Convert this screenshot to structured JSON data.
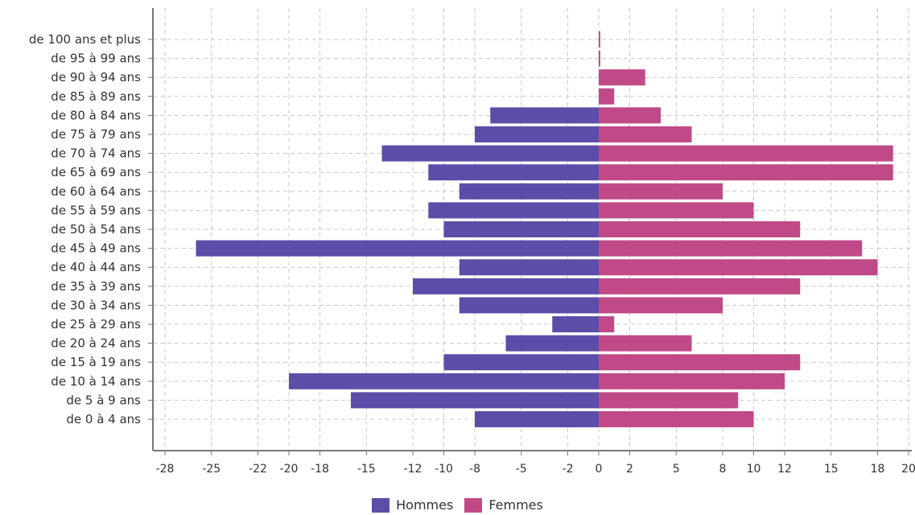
{
  "chart_data": {
    "type": "bar",
    "orientation": "horizontal",
    "categories": [
      "de 0 à 4 ans",
      "de 5 à 9 ans",
      "de 10 à 14 ans",
      "de 15 à 19 ans",
      "de 20 à 24 ans",
      "de 25 à 29 ans",
      "de 30 à 34 ans",
      "de 35 à 39 ans",
      "de 40 à 44 ans",
      "de 45 à 49 ans",
      "de 50 à 54 ans",
      "de 55 à 59 ans",
      "de 60 à 64 ans",
      "de 65 à 69 ans",
      "de 70 à 74 ans",
      "de 75 à 79 ans",
      "de 80 à 84 ans",
      "de 85 à 89 ans",
      "de 90 à 94 ans",
      "de 95 à 99 ans",
      "de 100 ans et plus"
    ],
    "series": [
      {
        "name": "Hommes",
        "color": "#5b4ea8",
        "values": [
          -8,
          -16,
          -20,
          -10,
          -6,
          -3,
          -9,
          -12,
          -9,
          -26,
          -10,
          -11,
          -9,
          -11,
          -14,
          -8,
          -7,
          0,
          0,
          0,
          0
        ]
      },
      {
        "name": "Femmes",
        "color": "#c04a87",
        "values": [
          10,
          9,
          12,
          13,
          6,
          1,
          8,
          13,
          18,
          17,
          13,
          10,
          8,
          19,
          19,
          6,
          4,
          1,
          3,
          0.1,
          0.1
        ]
      }
    ],
    "xlim": [
      -28,
      20
    ],
    "xticks": [
      -28,
      -25,
      -22,
      -20,
      -18,
      -15,
      -12,
      -10,
      -8,
      -5,
      -2,
      0,
      2,
      5,
      8,
      10,
      12,
      15,
      18,
      20
    ],
    "xtick_labels": [
      "-28",
      "-25",
      "-22",
      "-20",
      "-18",
      "-15",
      "-12",
      "-10",
      "-8",
      "-5",
      "-2",
      "0",
      "2",
      "5",
      "8",
      "10",
      "12",
      "15",
      "18",
      "20"
    ],
    "title": "",
    "xlabel": "",
    "ylabel": "",
    "grid": true,
    "legend_position": "bottom-center"
  },
  "legend": {
    "men": "Hommes",
    "women": "Femmes"
  }
}
